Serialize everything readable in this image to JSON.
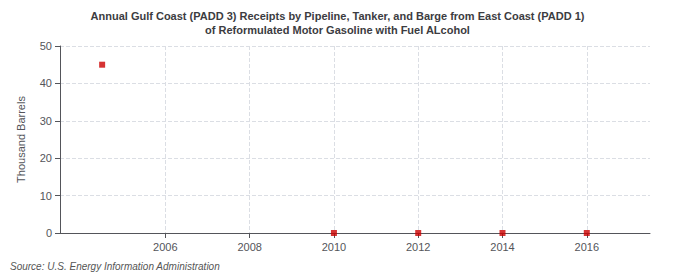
{
  "chart_data": {
    "type": "scatter",
    "title": "Annual Gulf Coast (PADD 3) Receipts by Pipeline, Tanker, and Barge from East Coast (PADD 1)\nof Reformulated Motor Gasoline with Fuel ALcohol",
    "ylabel": "Thousand Barrels",
    "annotations": [
      "Source: U.S. Energy Information Administration"
    ],
    "x": [
      2004.5,
      2010,
      2012,
      2014,
      2016
    ],
    "values": [
      45,
      0,
      0,
      0,
      0
    ],
    "color": "#cc0000",
    "marker": "square",
    "xlim": [
      2003.5,
      2017.5
    ],
    "ylim": [
      0,
      50
    ],
    "xticks": [
      2006,
      2008,
      2010,
      2012,
      2014,
      2016
    ],
    "yticks": [
      0,
      10,
      20,
      30,
      40,
      50
    ],
    "grid": true
  }
}
